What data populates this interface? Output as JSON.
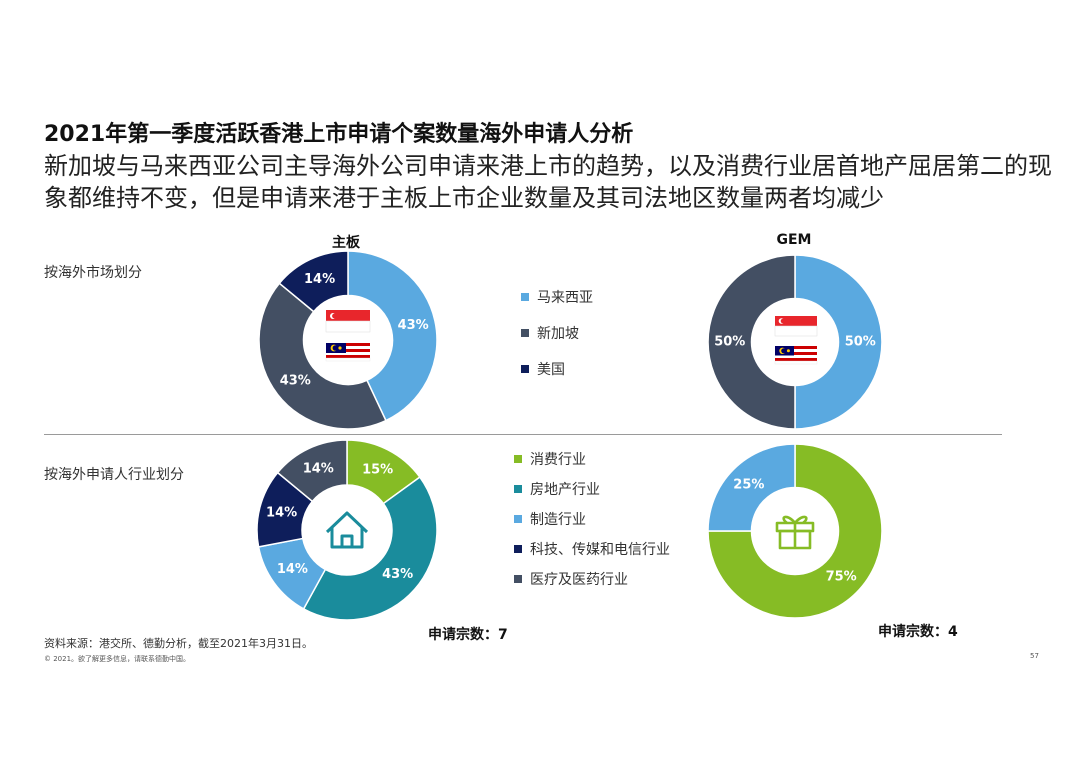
{
  "title": "2021年第一季度活跃香港上市申请个案数量海外申请人分析",
  "subtitle": "新加坡与马来西亚公司主导海外公司申请来港上市的趋势，以及消费行业居首地产屈居第二的现象都维持不变，但是申请来港于主板上市企业数量及其司法地区数量两者均减少",
  "columns": {
    "main": "主板",
    "gem": "GEM"
  },
  "sections": {
    "market": "按海外市场划分",
    "industry": "按海外申请人行业划分"
  },
  "legend_market": [
    {
      "label": "马来西亚",
      "color": "#5aa9e0"
    },
    {
      "label": "新加坡",
      "color": "#434f63"
    },
    {
      "label": "美国",
      "color": "#0e1e5b"
    }
  ],
  "legend_industry": [
    {
      "label": "消费行业",
      "color": "#86bc25"
    },
    {
      "label": "房地产行业",
      "color": "#1a8c9c"
    },
    {
      "label": "制造行业",
      "color": "#5aa9e0"
    },
    {
      "label": "科技、传媒和电信行业",
      "color": "#0e1e5b"
    },
    {
      "label": "医疗及医药行业",
      "color": "#434f63"
    }
  ],
  "icons": {
    "market": "sg-my-flags-icon",
    "industry_main": "house-icon",
    "industry_gem": "gift-icon"
  },
  "counts": {
    "main": "申请宗数：7",
    "gem": "申请宗数：4"
  },
  "footer": {
    "source": "资料来源：港交所、德勤分析，截至2021年3月31日。",
    "copyright": "© 2021。欲了解更多信息，请联系德勤中国。",
    "page": "57"
  },
  "chart_data": [
    {
      "type": "pie",
      "title": "主板",
      "group": "按海外市场划分",
      "slices": [
        {
          "label": "马来西亚",
          "value": 43,
          "display": "43%",
          "color": "#5aa9e0"
        },
        {
          "label": "新加坡",
          "value": 43,
          "display": "43%",
          "color": "#434f63"
        },
        {
          "label": "美国",
          "value": 14,
          "display": "14%",
          "color": "#0e1e5b"
        }
      ]
    },
    {
      "type": "pie",
      "title": "GEM",
      "group": "按海外市场划分",
      "slices": [
        {
          "label": "马来西亚",
          "value": 50,
          "display": "50%",
          "color": "#5aa9e0"
        },
        {
          "label": "新加坡",
          "value": 50,
          "display": "50%",
          "color": "#434f63"
        }
      ]
    },
    {
      "type": "pie",
      "title": "主板",
      "group": "按海外申请人行业划分",
      "slices": [
        {
          "label": "消费行业",
          "value": 15,
          "display": "15%",
          "color": "#86bc25"
        },
        {
          "label": "房地产行业",
          "value": 43,
          "display": "43%",
          "color": "#1a8c9c"
        },
        {
          "label": "制造行业",
          "value": 14,
          "display": "14%",
          "color": "#5aa9e0"
        },
        {
          "label": "科技、传媒和电信行业",
          "value": 14,
          "display": "14%",
          "color": "#0e1e5b"
        },
        {
          "label": "医疗及医药行业",
          "value": 14,
          "display": "14%",
          "color": "#434f63"
        }
      ]
    },
    {
      "type": "pie",
      "title": "GEM",
      "group": "按海外申请人行业划分",
      "slices": [
        {
          "label": "消费行业",
          "value": 75,
          "display": "75%",
          "color": "#86bc25"
        },
        {
          "label": "制造行业",
          "value": 25,
          "display": "25%",
          "color": "#5aa9e0"
        }
      ]
    }
  ]
}
